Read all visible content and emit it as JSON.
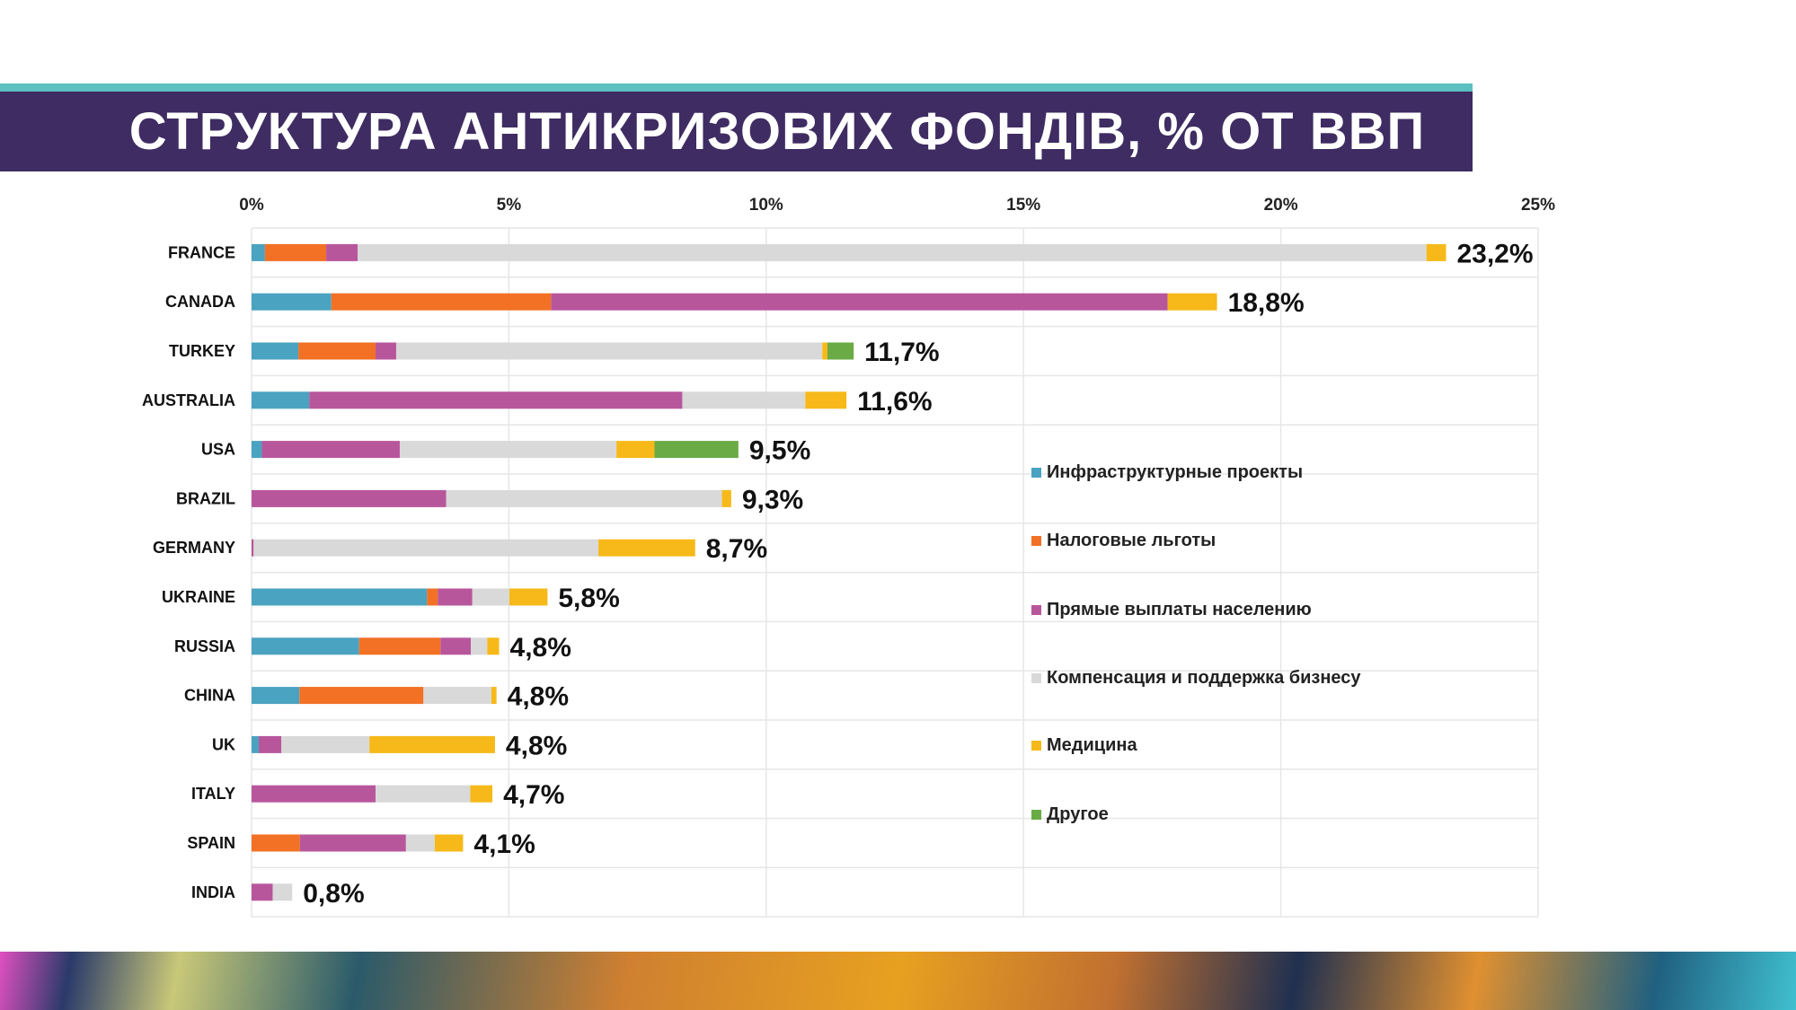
{
  "title": "СТРУКТУРА АНТИКРИЗОВИХ ФОНДІВ, % ОТ ВВП",
  "chart_data": {
    "type": "bar",
    "orientation": "horizontal",
    "stacked": true,
    "title": "СТРУКТУРА АНТИКРИЗОВИХ ФОНДІВ, % ОТ ВВП",
    "xlim": [
      0,
      25
    ],
    "x_ticks": [
      "0%",
      "5%",
      "10%",
      "15%",
      "20%",
      "25%"
    ],
    "grid": true,
    "legend_position": "right",
    "categories": [
      "FRANCE",
      "CANADA",
      "TURKEY",
      "AUSTRALIA",
      "USA",
      "BRAZIL",
      "GERMANY",
      "UKRAINE",
      "RUSSIA",
      "CHINA",
      "UK",
      "ITALY",
      "SPAIN",
      "INDIA"
    ],
    "totals_labels": [
      "23,2%",
      "18,8%",
      "11,7%",
      "11,6%",
      "9,5%",
      "9,3%",
      "8,7%",
      "5,8%",
      "4,8%",
      "4,8%",
      "4,8%",
      "4,7%",
      "4,1%",
      "0,8%"
    ],
    "highlight_category": "UKRAINE",
    "highlight_color": "#e31e24",
    "series": [
      {
        "name": "Инфраструктурные проекты",
        "color": "#4aa3c0",
        "values": [
          0.26,
          1.55,
          0.91,
          1.12,
          0.2,
          0,
          0,
          3.41,
          2.09,
          0.93,
          0.14,
          0,
          0,
          0
        ]
      },
      {
        "name": "Налоговые льготы",
        "color": "#f27124",
        "values": [
          1.19,
          4.27,
          1.5,
          0,
          0,
          0,
          0,
          0.21,
          1.58,
          2.41,
          0,
          0,
          0.94,
          0
        ]
      },
      {
        "name": "Прямые выплаты населению",
        "color": "#b8569c",
        "values": [
          0.61,
          11.98,
          0.4,
          7.25,
          2.68,
          3.78,
          0.04,
          0.67,
          0.59,
          0,
          0.44,
          2.41,
          2.06,
          0.41
        ]
      },
      {
        "name": "Компенсация и поддержка бизнесу",
        "color": "#d9d9d9",
        "values": [
          20.77,
          0,
          8.28,
          2.39,
          4.21,
          5.36,
          6.7,
          0.72,
          0.32,
          1.32,
          1.71,
          1.84,
          0.56,
          0.38
        ]
      },
      {
        "name": "Медицина",
        "color": "#f6b919",
        "values": [
          0.38,
          0.96,
          0.1,
          0.8,
          0.74,
          0.18,
          1.88,
          0.74,
          0.23,
          0.1,
          2.44,
          0.43,
          0.55,
          0
        ]
      },
      {
        "name": "Другое",
        "color": "#6aab45",
        "values": [
          0,
          0,
          0.51,
          0,
          1.63,
          0,
          0,
          0,
          0,
          0,
          0,
          0,
          0,
          0
        ]
      }
    ]
  }
}
